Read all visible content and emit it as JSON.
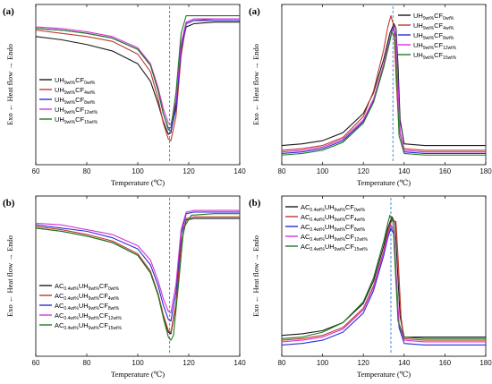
{
  "chart_data": [
    {
      "type": "line",
      "panel_label": "(a)",
      "xlabel": "Temperature (℃)",
      "ylabel": "Exo ←  Heat flow  → Endo",
      "xlim": [
        60,
        140
      ],
      "xticks": [
        60,
        80,
        100,
        120,
        140
      ],
      "x_dashed_line": 112.5,
      "legend": {
        "position": "middle-left",
        "entries": [
          {
            "base": "UH",
            "sub1": "9wt%",
            "mid": "CF",
            "sub2": "0wt%",
            "color": "#1a1a1a"
          },
          {
            "base": "UH",
            "sub1": "9wt%",
            "mid": "CF",
            "sub2": "4wt%",
            "color": "#c0392b"
          },
          {
            "base": "UH",
            "sub1": "9wt%",
            "mid": "CF",
            "sub2": "8wt%",
            "color": "#2b2bd6"
          },
          {
            "base": "UH",
            "sub1": "9wt%",
            "mid": "CF",
            "sub2": "12wt%",
            "color": "#d633d6"
          },
          {
            "base": "UH",
            "sub1": "9wt%",
            "mid": "CF",
            "sub2": "15wt%",
            "color": "#1f7a1f"
          }
        ]
      },
      "series_kind": "cooling-exotherm",
      "series": [
        {
          "color": "#1a1a1a",
          "x": [
            60,
            70,
            80,
            90,
            100,
            105,
            108,
            110,
            112,
            113,
            115,
            117,
            119,
            122,
            130,
            140
          ],
          "y": [
            0.8,
            0.78,
            0.75,
            0.71,
            0.63,
            0.52,
            0.38,
            0.27,
            0.19,
            0.2,
            0.38,
            0.72,
            0.86,
            0.88,
            0.89,
            0.89
          ]
        },
        {
          "color": "#c0392b",
          "x": [
            60,
            70,
            80,
            90,
            100,
            105,
            108,
            110,
            112,
            113,
            115,
            117,
            119,
            122,
            130,
            140
          ],
          "y": [
            0.84,
            0.82,
            0.8,
            0.77,
            0.69,
            0.58,
            0.41,
            0.26,
            0.16,
            0.15,
            0.3,
            0.68,
            0.88,
            0.9,
            0.91,
            0.91
          ]
        },
        {
          "color": "#2b2bd6",
          "x": [
            60,
            70,
            80,
            90,
            100,
            105,
            108,
            110,
            112,
            113,
            115,
            117,
            119,
            122,
            130,
            140
          ],
          "y": [
            0.85,
            0.84,
            0.82,
            0.79,
            0.72,
            0.62,
            0.46,
            0.32,
            0.22,
            0.21,
            0.35,
            0.72,
            0.88,
            0.9,
            0.9,
            0.9
          ]
        },
        {
          "color": "#d633d6",
          "x": [
            60,
            70,
            80,
            90,
            100,
            105,
            108,
            110,
            112,
            113,
            115,
            117,
            119,
            122,
            130,
            140
          ],
          "y": [
            0.86,
            0.85,
            0.83,
            0.8,
            0.73,
            0.63,
            0.48,
            0.35,
            0.26,
            0.25,
            0.4,
            0.76,
            0.89,
            0.91,
            0.91,
            0.91
          ]
        },
        {
          "color": "#1f7a1f",
          "x": [
            60,
            70,
            80,
            90,
            100,
            105,
            108,
            110,
            112,
            113,
            115,
            117,
            119,
            122,
            130,
            140
          ],
          "y": [
            0.85,
            0.84,
            0.82,
            0.79,
            0.72,
            0.62,
            0.46,
            0.32,
            0.23,
            0.23,
            0.45,
            0.82,
            0.93,
            0.93,
            0.93,
            0.93
          ]
        }
      ]
    },
    {
      "type": "line",
      "panel_label": "(a)",
      "xlabel": "Temperature (℃)",
      "ylabel": "Exo ←  Heat flow  → Endo",
      "xlim": [
        80,
        180
      ],
      "xticks": [
        80,
        100,
        120,
        140,
        160,
        180
      ],
      "x_dashed_line": 134.5,
      "legend": {
        "position": "top-right",
        "entries": [
          {
            "base": "UH",
            "sub1": "9wt%",
            "mid": "CF",
            "sub2": "0wt%",
            "color": "#1a1a1a"
          },
          {
            "base": "UH",
            "sub1": "9wt%",
            "mid": "CF",
            "sub2": "4wt%",
            "color": "#c0392b"
          },
          {
            "base": "UH",
            "sub1": "9wt%",
            "mid": "CF",
            "sub2": "8wt%",
            "color": "#2b2bd6"
          },
          {
            "base": "UH",
            "sub1": "9wt%",
            "mid": "CF",
            "sub2": "12wt%",
            "color": "#d633d6"
          },
          {
            "base": "UH",
            "sub1": "9wt%",
            "mid": "CF",
            "sub2": "15wt%",
            "color": "#1f7a1f"
          }
        ]
      },
      "series_kind": "melting-endotherm",
      "series": [
        {
          "color": "#1a1a1a",
          "x": [
            80,
            90,
            100,
            110,
            120,
            125,
            130,
            133,
            135,
            136,
            137,
            138,
            140,
            150,
            180
          ],
          "y": [
            0.12,
            0.13,
            0.15,
            0.2,
            0.32,
            0.45,
            0.66,
            0.82,
            0.88,
            0.85,
            0.62,
            0.28,
            0.13,
            0.12,
            0.12
          ]
        },
        {
          "color": "#c0392b",
          "x": [
            80,
            90,
            100,
            110,
            120,
            125,
            130,
            132,
            133.5,
            135,
            136,
            137.5,
            140,
            150,
            180
          ],
          "y": [
            0.09,
            0.1,
            0.12,
            0.17,
            0.3,
            0.46,
            0.72,
            0.86,
            0.93,
            0.86,
            0.55,
            0.22,
            0.1,
            0.09,
            0.09
          ]
        },
        {
          "color": "#2b2bd6",
          "x": [
            80,
            90,
            100,
            110,
            120,
            125,
            130,
            133,
            134.5,
            136,
            137,
            138,
            140,
            150,
            180
          ],
          "y": [
            0.07,
            0.08,
            0.1,
            0.15,
            0.27,
            0.4,
            0.62,
            0.78,
            0.86,
            0.8,
            0.52,
            0.2,
            0.08,
            0.07,
            0.07
          ]
        },
        {
          "color": "#d633d6",
          "x": [
            80,
            90,
            100,
            110,
            120,
            125,
            130,
            133,
            134.5,
            136,
            137,
            138,
            140,
            150,
            180
          ],
          "y": [
            0.08,
            0.09,
            0.11,
            0.16,
            0.28,
            0.41,
            0.63,
            0.79,
            0.85,
            0.79,
            0.5,
            0.19,
            0.09,
            0.08,
            0.08
          ]
        },
        {
          "color": "#1f7a1f",
          "x": [
            80,
            90,
            100,
            110,
            120,
            125,
            130,
            133,
            134,
            135.5,
            136.5,
            137.5,
            140,
            150,
            180
          ],
          "y": [
            0.06,
            0.07,
            0.09,
            0.14,
            0.26,
            0.39,
            0.61,
            0.77,
            0.83,
            0.78,
            0.5,
            0.18,
            0.07,
            0.06,
            0.06
          ]
        }
      ]
    },
    {
      "type": "line",
      "panel_label": "(b)",
      "xlabel": "Temperature (℃)",
      "ylabel": "Exo ←  Heat flow  → Endo",
      "xlim": [
        60,
        140
      ],
      "xticks": [
        60,
        80,
        100,
        120,
        140
      ],
      "x_dashed_line": 112.5,
      "legend": {
        "position": "bottom-left",
        "entries": [
          {
            "base": "AC",
            "sub0": "0.4wt%",
            "pre": "UH",
            "sub1": "9wt%",
            "mid": "CF",
            "sub2": "0wt%",
            "color": "#1a1a1a"
          },
          {
            "base": "AC",
            "sub0": "0.4wt%",
            "pre": "UH",
            "sub1": "9wt%",
            "mid": "CF",
            "sub2": "4wt%",
            "color": "#c0392b"
          },
          {
            "base": "AC",
            "sub0": "0.4wt%",
            "pre": "UH",
            "sub1": "9wt%",
            "mid": "CF",
            "sub2": "8wt%",
            "color": "#2b2bd6"
          },
          {
            "base": "AC",
            "sub0": "0.4wt%",
            "pre": "UH",
            "sub1": "9wt%",
            "mid": "CF",
            "sub2": "12wt%",
            "color": "#d633d6"
          },
          {
            "base": "AC",
            "sub0": "0.4wt%",
            "pre": "UH",
            "sub1": "9wt%",
            "mid": "CF",
            "sub2": "15wt%",
            "color": "#1f7a1f"
          }
        ]
      },
      "series_kind": "cooling-exotherm",
      "series": [
        {
          "color": "#1a1a1a",
          "x": [
            60,
            70,
            80,
            90,
            100,
            105,
            108,
            110,
            112,
            113,
            115,
            117,
            119,
            122,
            130,
            140
          ],
          "y": [
            0.8,
            0.78,
            0.75,
            0.71,
            0.63,
            0.52,
            0.38,
            0.25,
            0.15,
            0.14,
            0.32,
            0.7,
            0.85,
            0.86,
            0.86,
            0.86
          ]
        },
        {
          "color": "#c0392b",
          "x": [
            60,
            70,
            80,
            90,
            100,
            105,
            108,
            110,
            112,
            113,
            115,
            117,
            119,
            122,
            130,
            140
          ],
          "y": [
            0.81,
            0.79,
            0.76,
            0.72,
            0.64,
            0.53,
            0.39,
            0.26,
            0.16,
            0.15,
            0.33,
            0.71,
            0.86,
            0.87,
            0.87,
            0.87
          ]
        },
        {
          "color": "#2b2bd6",
          "x": [
            60,
            70,
            80,
            90,
            100,
            105,
            108,
            110,
            112,
            113,
            115,
            117,
            119,
            122,
            130,
            140
          ],
          "y": [
            0.82,
            0.8,
            0.78,
            0.74,
            0.67,
            0.57,
            0.44,
            0.32,
            0.23,
            0.22,
            0.4,
            0.76,
            0.89,
            0.9,
            0.9,
            0.9
          ]
        },
        {
          "color": "#d633d6",
          "x": [
            60,
            70,
            80,
            90,
            100,
            105,
            108,
            110,
            112,
            113,
            115,
            117,
            119,
            122,
            130,
            140
          ],
          "y": [
            0.83,
            0.82,
            0.79,
            0.76,
            0.69,
            0.6,
            0.47,
            0.36,
            0.28,
            0.27,
            0.45,
            0.79,
            0.9,
            0.91,
            0.91,
            0.91
          ]
        },
        {
          "color": "#1f7a1f",
          "x": [
            60,
            70,
            80,
            90,
            100,
            105,
            108,
            110,
            112,
            113,
            114,
            116,
            118,
            121,
            130,
            140
          ],
          "y": [
            0.8,
            0.78,
            0.75,
            0.71,
            0.63,
            0.52,
            0.38,
            0.24,
            0.12,
            0.1,
            0.13,
            0.45,
            0.8,
            0.88,
            0.89,
            0.89
          ]
        }
      ]
    },
    {
      "type": "line",
      "panel_label": "(b)",
      "xlabel": "Temperature (℃)",
      "ylabel": "Exo ←  Heat flow  → Endo",
      "xlim": [
        80,
        180
      ],
      "xticks": [
        80,
        100,
        120,
        140,
        160,
        180
      ],
      "x_dashed_line": 133.5,
      "legend": {
        "position": "top-left",
        "entries": [
          {
            "base": "AC",
            "sub0": "0.4wt%",
            "pre": "UH",
            "sub1": "9wt%",
            "mid": "CF",
            "sub2": "0wt%",
            "color": "#1a1a1a"
          },
          {
            "base": "AC",
            "sub0": "0.4wt%",
            "pre": "UH",
            "sub1": "9wt%",
            "mid": "CF",
            "sub2": "4wt%",
            "color": "#c0392b"
          },
          {
            "base": "AC",
            "sub0": "0.4wt%",
            "pre": "UH",
            "sub1": "9wt%",
            "mid": "CF",
            "sub2": "8wt%",
            "color": "#2b2bd6"
          },
          {
            "base": "AC",
            "sub0": "0.4wt%",
            "pre": "UH",
            "sub1": "9wt%",
            "mid": "CF",
            "sub2": "12wt%",
            "color": "#d633d6"
          },
          {
            "base": "AC",
            "sub0": "0.4wt%",
            "pre": "UH",
            "sub1": "9wt%",
            "mid": "CF",
            "sub2": "15wt%",
            "color": "#1f7a1f"
          }
        ]
      },
      "series_kind": "melting-endotherm",
      "series": [
        {
          "color": "#1a1a1a",
          "x": [
            80,
            90,
            100,
            110,
            120,
            125,
            130,
            132,
            134,
            135.5,
            136.5,
            138,
            140,
            150,
            180
          ],
          "y": [
            0.13,
            0.14,
            0.16,
            0.21,
            0.33,
            0.47,
            0.69,
            0.8,
            0.87,
            0.83,
            0.6,
            0.25,
            0.12,
            0.12,
            0.12
          ]
        },
        {
          "color": "#c0392b",
          "x": [
            80,
            90,
            100,
            110,
            120,
            125,
            130,
            132,
            134,
            136,
            137,
            138.5,
            140,
            150,
            180
          ],
          "y": [
            0.1,
            0.11,
            0.13,
            0.18,
            0.3,
            0.44,
            0.66,
            0.78,
            0.85,
            0.84,
            0.62,
            0.24,
            0.11,
            0.1,
            0.1
          ]
        },
        {
          "color": "#2b2bd6",
          "x": [
            80,
            90,
            100,
            110,
            120,
            125,
            130,
            132,
            133.5,
            135,
            136,
            137.5,
            140,
            150,
            180
          ],
          "y": [
            0.07,
            0.08,
            0.1,
            0.15,
            0.27,
            0.41,
            0.63,
            0.74,
            0.8,
            0.76,
            0.52,
            0.18,
            0.08,
            0.07,
            0.07
          ]
        },
        {
          "color": "#d633d6",
          "x": [
            80,
            90,
            100,
            110,
            120,
            125,
            130,
            132,
            133.5,
            135,
            136,
            137.5,
            140,
            150,
            180
          ],
          "y": [
            0.09,
            0.1,
            0.12,
            0.17,
            0.29,
            0.43,
            0.65,
            0.76,
            0.82,
            0.78,
            0.54,
            0.2,
            0.1,
            0.09,
            0.09
          ]
        },
        {
          "color": "#1f7a1f",
          "x": [
            80,
            90,
            100,
            110,
            120,
            125,
            130,
            132,
            133,
            134.5,
            135.5,
            137,
            140,
            150,
            180
          ],
          "y": [
            0.11,
            0.12,
            0.15,
            0.21,
            0.34,
            0.49,
            0.72,
            0.83,
            0.88,
            0.84,
            0.58,
            0.22,
            0.12,
            0.11,
            0.11
          ]
        }
      ]
    }
  ]
}
